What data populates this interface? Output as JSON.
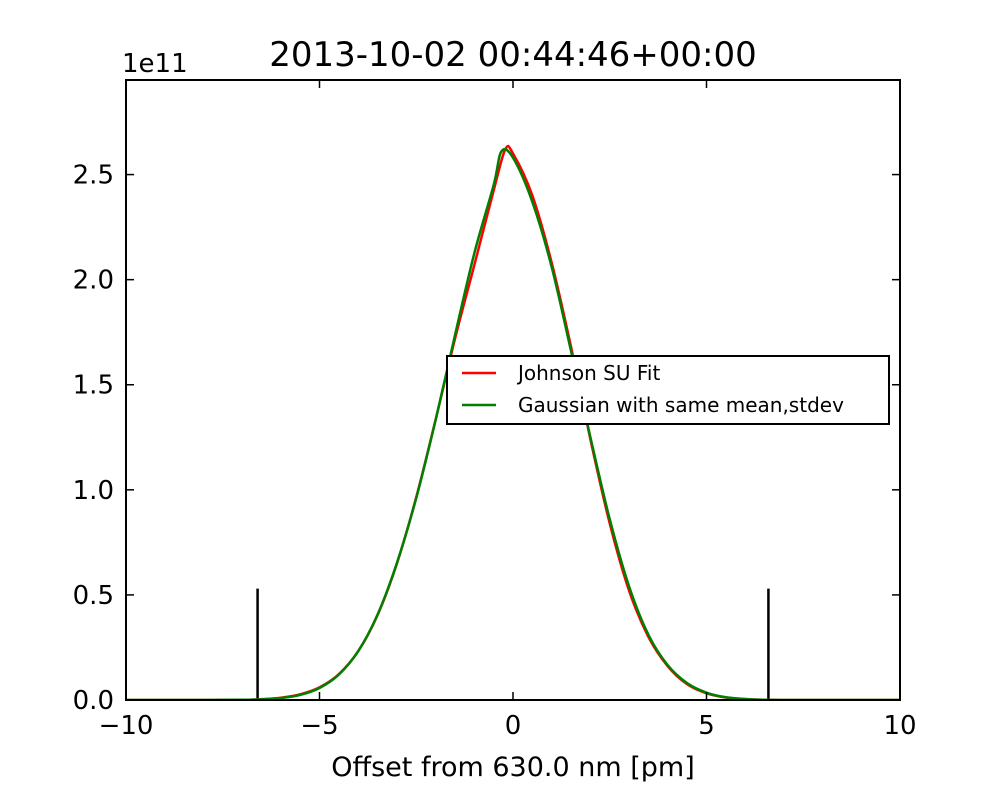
{
  "chart_data": {
    "type": "line",
    "title": "2013-10-02 00:44:46+00:00",
    "xlabel": "Offset from 630.0 nm [pm]",
    "ylabel": "",
    "y_offset_label": "1e11",
    "xlim": [
      -10,
      10
    ],
    "ylim": [
      0,
      2.95
    ],
    "y_scale_factor": 100000000000.0,
    "xticks": [
      -10,
      -5,
      0,
      5,
      10
    ],
    "xtick_labels": [
      "−10",
      "−5",
      "0",
      "5",
      "10"
    ],
    "yticks": [
      0.0,
      0.5,
      1.0,
      1.5,
      2.0,
      2.5
    ],
    "ytick_labels": [
      "0.0",
      "0.5",
      "1.0",
      "1.5",
      "2.0",
      "2.5"
    ],
    "grid": false,
    "legend_position": "center-right",
    "series": [
      {
        "name": "Johnson SU Fit",
        "color": "#ff0000",
        "x": [
          -10,
          -8,
          -7,
          -6.5,
          -6,
          -5.5,
          -5,
          -4.5,
          -4,
          -3.5,
          -3,
          -2.5,
          -2,
          -1.5,
          -1,
          -0.5,
          -0.2,
          0,
          0.5,
          1,
          1.5,
          2,
          2.5,
          3,
          3.5,
          4,
          4.5,
          5,
          5.5,
          6,
          6.5,
          7,
          8,
          10
        ],
        "y": [
          0.0,
          0.0,
          0.0,
          0.004,
          0.011,
          0.027,
          0.06,
          0.123,
          0.232,
          0.404,
          0.649,
          0.965,
          1.333,
          1.718,
          2.069,
          2.424,
          2.62,
          2.6,
          2.4,
          2.08,
          1.68,
          1.24,
          0.84,
          0.52,
          0.3,
          0.16,
          0.075,
          0.032,
          0.012,
          0.004,
          0.001,
          0.0,
          0.0,
          0.0
        ]
      },
      {
        "name": "Gaussian with same mean,stdev",
        "color": "#008000",
        "x": [
          -10,
          -8,
          -7,
          -6.5,
          -6,
          -5.5,
          -5,
          -4.5,
          -4,
          -3.5,
          -3,
          -2.5,
          -2,
          -1.5,
          -1,
          -0.5,
          -0.3,
          0,
          0.5,
          1,
          1.5,
          2,
          2.5,
          3,
          3.5,
          4,
          4.5,
          5,
          5.5,
          6,
          6.5,
          7,
          8,
          10
        ],
        "y": [
          0.0,
          0.0,
          0.001,
          0.003,
          0.009,
          0.024,
          0.057,
          0.121,
          0.232,
          0.406,
          0.652,
          0.961,
          1.332,
          1.735,
          2.125,
          2.45,
          2.61,
          2.58,
          2.37,
          2.06,
          1.66,
          1.25,
          0.86,
          0.54,
          0.31,
          0.165,
          0.08,
          0.035,
          0.013,
          0.005,
          0.001,
          0.0,
          0.0,
          0.0
        ]
      }
    ],
    "vertical_markers": [
      {
        "x": -6.6,
        "height": 0.53,
        "color": "#000000"
      },
      {
        "x": 6.6,
        "height": 0.53,
        "color": "#000000"
      }
    ]
  }
}
